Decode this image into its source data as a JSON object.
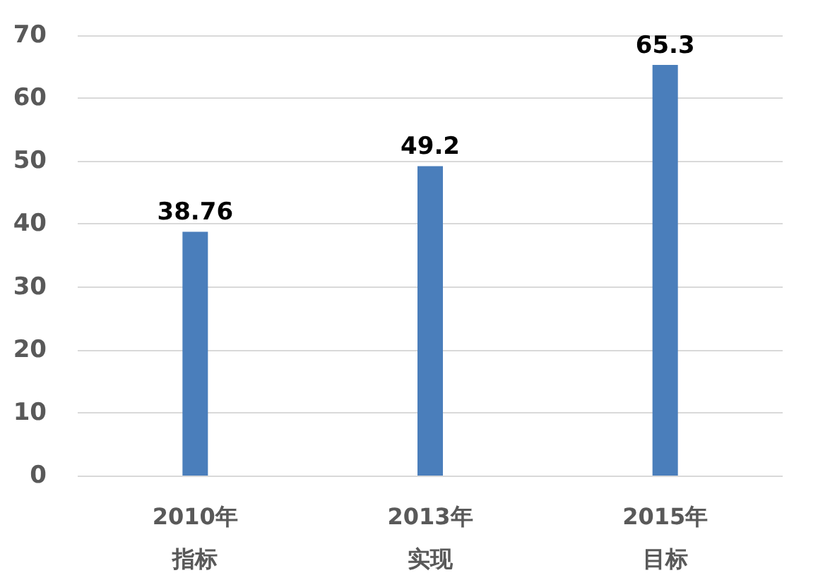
{
  "chart_data": {
    "type": "bar",
    "categories": [
      "2010年指标",
      "2013年实现",
      "2015年目标"
    ],
    "values": [
      38.76,
      49.2,
      65.3
    ],
    "color": "#4a7ebb",
    "ylim": [
      0,
      70
    ],
    "yticks": [
      0,
      10,
      20,
      30,
      40,
      50,
      60,
      70
    ],
    "grid": "y",
    "data_labels": true
  }
}
